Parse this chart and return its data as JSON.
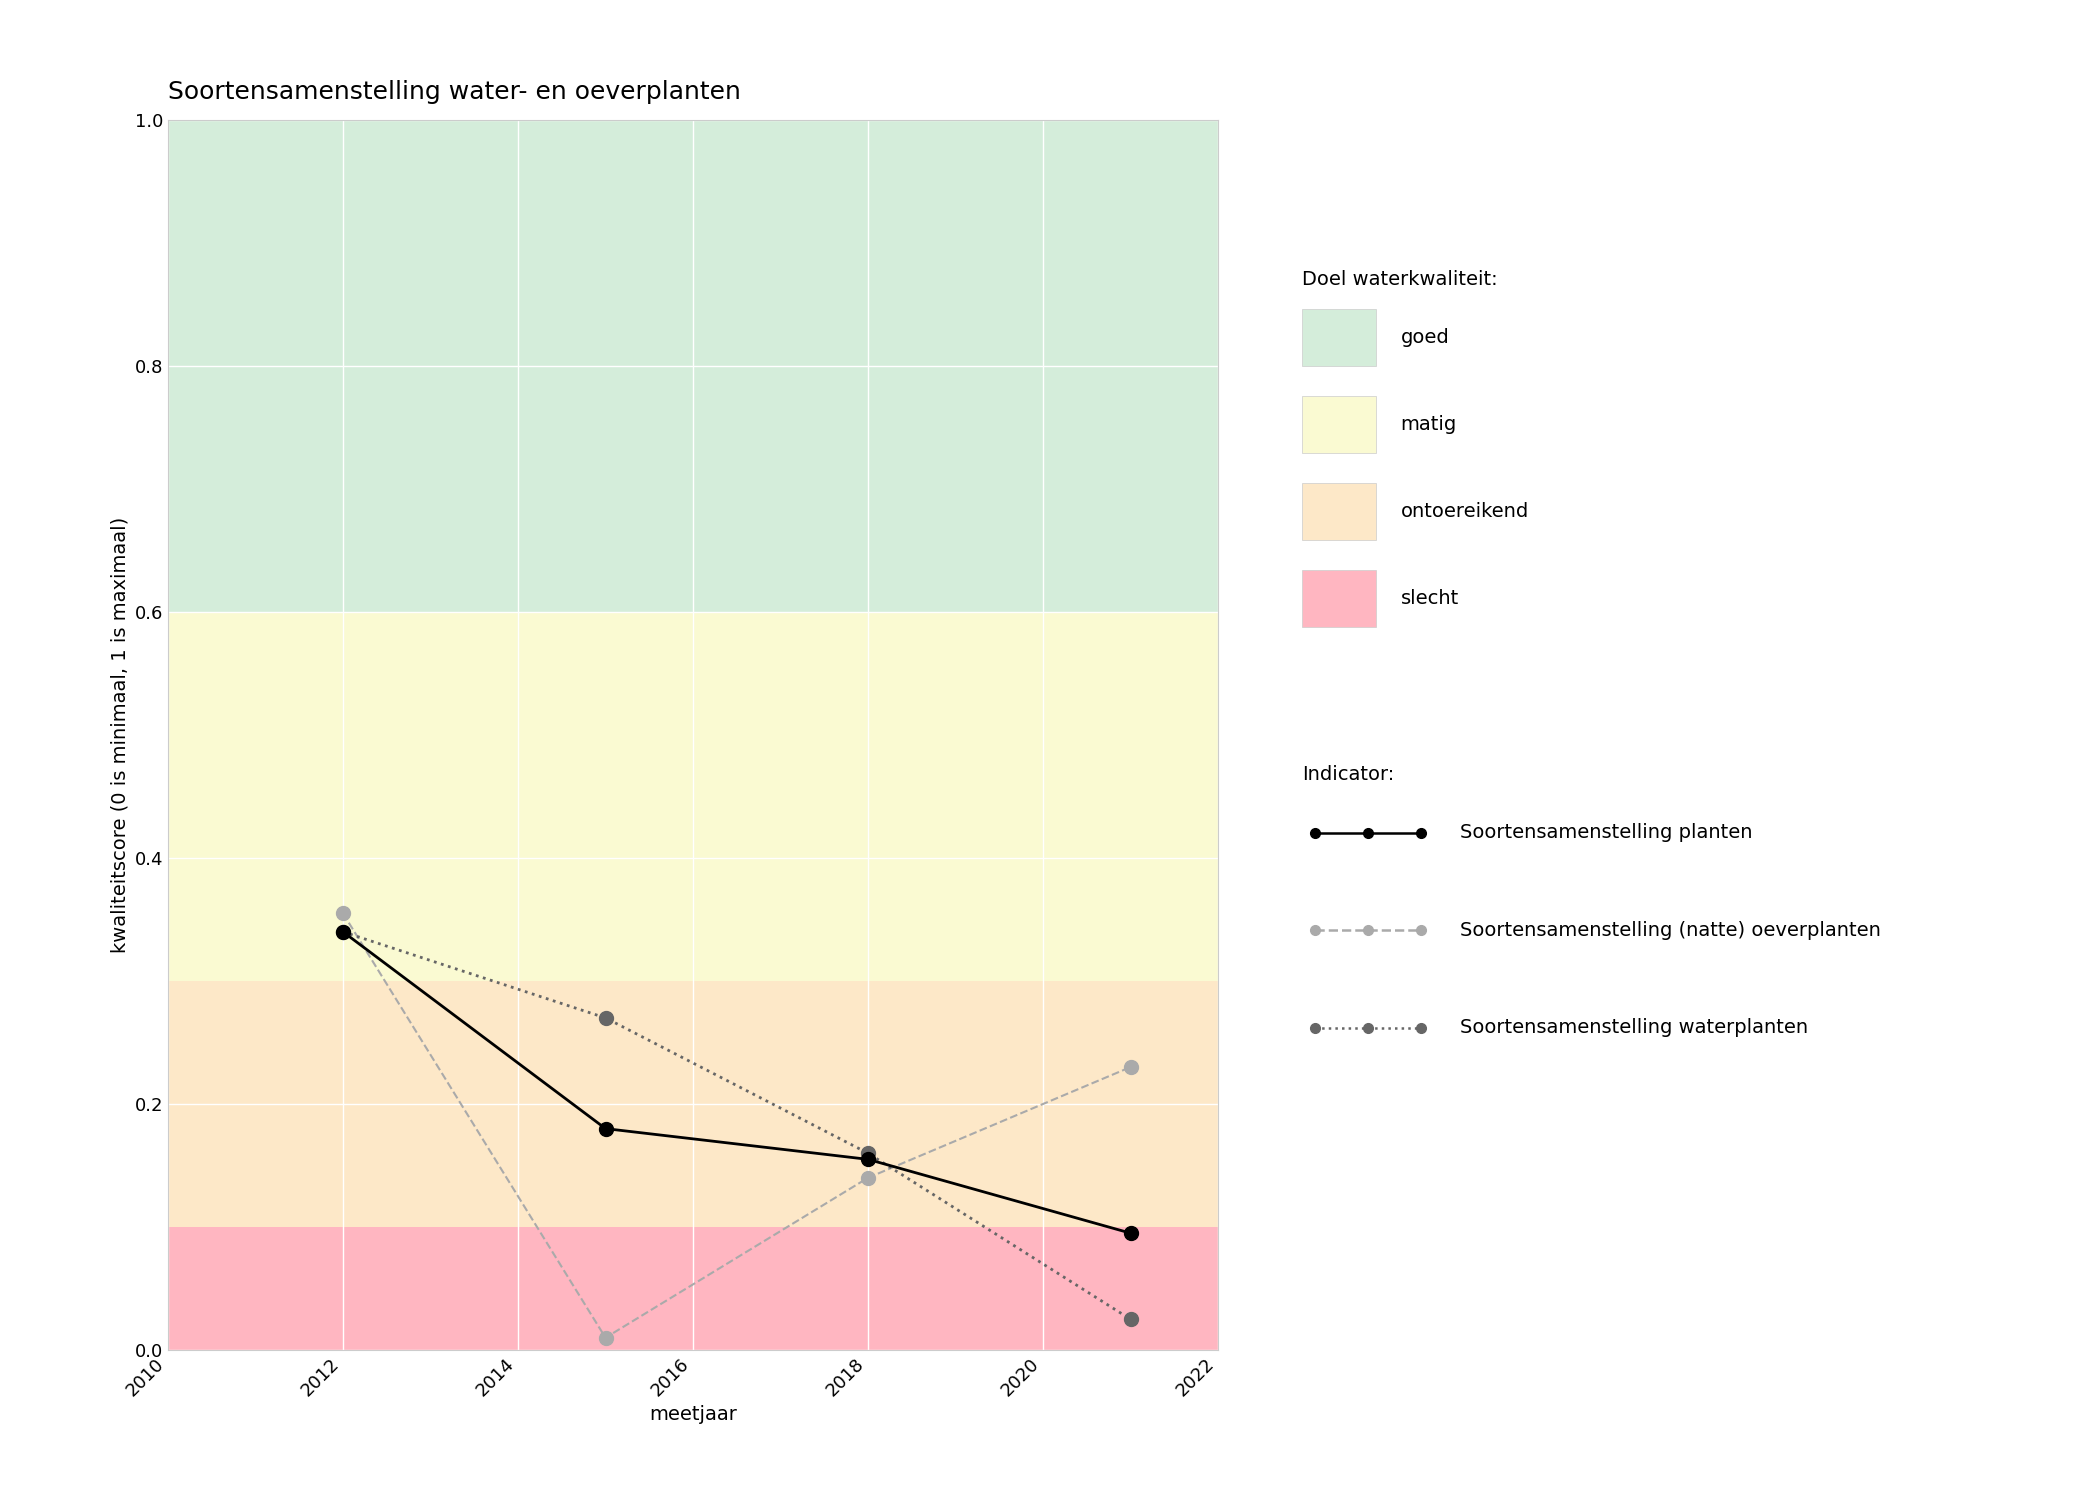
{
  "title": "Soortensamenstelling water- en oeverplanten",
  "xlabel": "meetjaar",
  "ylabel": "kwaliteitscore (0 is minimaal, 1 is maximaal)",
  "xlim": [
    2010,
    2022
  ],
  "ylim": [
    0.0,
    1.0
  ],
  "xticks": [
    2010,
    2012,
    2014,
    2016,
    2018,
    2020,
    2022
  ],
  "yticks": [
    0.0,
    0.2,
    0.4,
    0.6,
    0.8,
    1.0
  ],
  "background_color": "#ffffff",
  "bg_bands": [
    {
      "ymin": 0.6,
      "ymax": 1.0,
      "color": "#d4edda",
      "label": "goed"
    },
    {
      "ymin": 0.3,
      "ymax": 0.6,
      "color": "#fafad2",
      "label": "matig"
    },
    {
      "ymin": 0.1,
      "ymax": 0.3,
      "color": "#fde8c8",
      "label": "ontoereikend"
    },
    {
      "ymin": 0.0,
      "ymax": 0.1,
      "color": "#ffb6c1",
      "label": "slecht"
    }
  ],
  "line_planten": {
    "years": [
      2012,
      2015,
      2018,
      2021
    ],
    "values": [
      0.34,
      0.18,
      0.155,
      0.095
    ],
    "color": "#000000",
    "linestyle": "solid",
    "marker": "o",
    "markersize": 10,
    "linewidth": 2,
    "label": "Soortensamenstelling planten"
  },
  "line_oeverplanten": {
    "years": [
      2012,
      2015,
      2018,
      2021
    ],
    "values": [
      0.355,
      0.01,
      0.14,
      0.23
    ],
    "color": "#aaaaaa",
    "linestyle": "dashed",
    "marker": "o",
    "markersize": 10,
    "linewidth": 1.5,
    "label": "Soortensamenstelling (natte) oeverplanten"
  },
  "line_waterplanten": {
    "years": [
      2012,
      2015,
      2018,
      2021
    ],
    "values": [
      0.34,
      0.27,
      0.16,
      0.025
    ],
    "color": "#666666",
    "linestyle": "dotted",
    "marker": "o",
    "markersize": 10,
    "linewidth": 2,
    "label": "Soortensamenstelling waterplanten"
  },
  "legend_quality_title": "Doel waterkwaliteit:",
  "legend_indicator_title": "Indicator:",
  "title_fontsize": 18,
  "axis_label_fontsize": 14,
  "tick_fontsize": 13,
  "legend_fontsize": 14
}
